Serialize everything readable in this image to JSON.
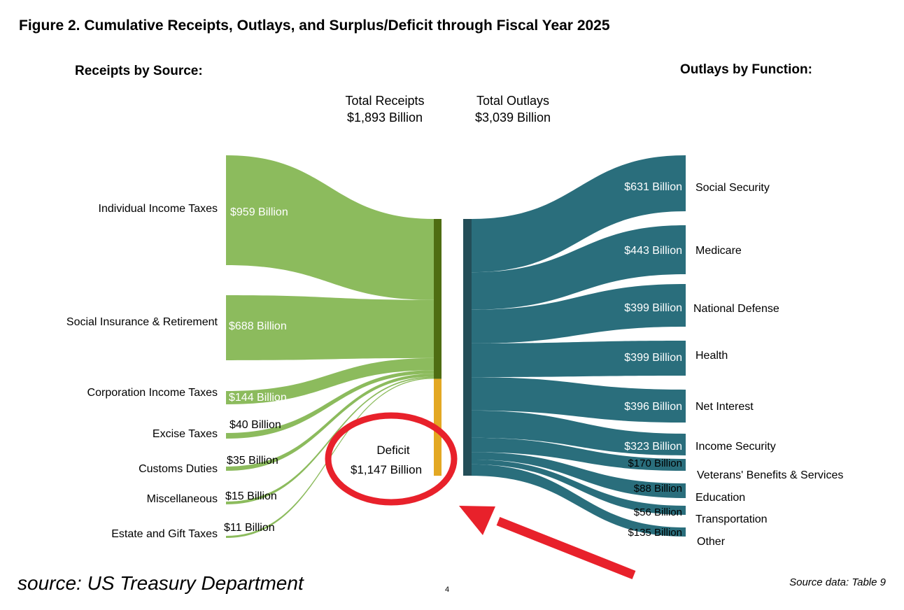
{
  "title": "Figure 2. Cumulative Receipts, Outlays, and Surplus/Deficit through Fiscal Year 2025",
  "receipts_heading": "Receipts by Source:",
  "outlays_heading": "Outlays by Function:",
  "total_receipts": {
    "label": "Total Receipts",
    "value": "$1,893 Billion"
  },
  "total_outlays": {
    "label": "Total Outlays",
    "value": "$3,039 Billion"
  },
  "deficit": {
    "label": "Deficit",
    "value": "$1,147 Billion"
  },
  "source_left": "source: US Treasury Department",
  "source_right": "Source data: Table 9",
  "page_number": "4",
  "colors": {
    "receipts_flow": "#8cbb5d",
    "receipts_bar": "#4e6d12",
    "deficit_bar": "#e3a823",
    "outlays_flow": "#2a6e7c",
    "outlays_bar": "#234e58",
    "annotation": "#e8212b"
  },
  "chart_data": {
    "type": "sankey",
    "units": "Billion",
    "receipts": [
      {
        "name": "Individual Income Taxes",
        "value": 959,
        "label": "$959 Billion"
      },
      {
        "name": "Social Insurance & Retirement",
        "value": 688,
        "label": "$688 Billion"
      },
      {
        "name": "Corporation Income Taxes",
        "value": 144,
        "label": "$144 Billion"
      },
      {
        "name": "Excise Taxes",
        "value": 40,
        "label": "$40 Billion"
      },
      {
        "name": "Customs Duties",
        "value": 35,
        "label": "$35 Billion"
      },
      {
        "name": "Miscellaneous",
        "value": 15,
        "label": "$15 Billion"
      },
      {
        "name": "Estate and Gift Taxes",
        "value": 11,
        "label": "$11 Billion"
      }
    ],
    "outlays": [
      {
        "name": "Social Security",
        "value": 631,
        "label": "$631 Billion"
      },
      {
        "name": "Medicare",
        "value": 443,
        "label": "$443 Billion"
      },
      {
        "name": "National Defense",
        "value": 399,
        "label": "$399 Billion"
      },
      {
        "name": "Health",
        "value": 399,
        "label": "$399 Billion"
      },
      {
        "name": "Net Interest",
        "value": 396,
        "label": "$396 Billion"
      },
      {
        "name": "Income Security",
        "value": 323,
        "label": "$323 Billion"
      },
      {
        "name": "Veterans' Benefits & Services",
        "value": 170,
        "label": "$170 Billion"
      },
      {
        "name": "Education",
        "value": 88,
        "label": "$88 Billion"
      },
      {
        "name": "Transportation",
        "value": 56,
        "label": "$56 Billion"
      },
      {
        "name": "Other",
        "value": 135,
        "label": "$135 Billion"
      }
    ],
    "total_receipts": 1893,
    "total_outlays": 3039,
    "deficit": 1147
  }
}
